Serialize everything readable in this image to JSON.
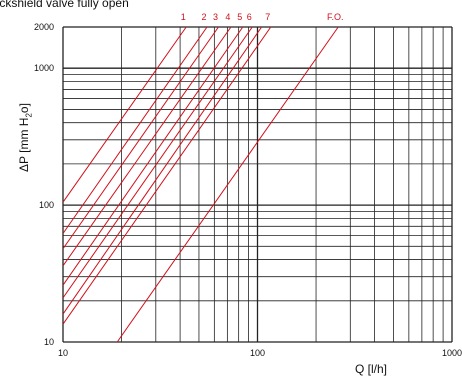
{
  "chart_data": {
    "type": "line",
    "title": "Lockshield valve fully open",
    "xlabel": "Q [l/h]",
    "ylabel_main": "ΔP [mm H",
    "ylabel_sub": "2",
    "ylabel_end": "o]",
    "x_scale": "log",
    "y_scale": "log",
    "xlim": [
      10,
      1000
    ],
    "ylim": [
      10,
      2000
    ],
    "x_ticks": [
      {
        "value": 10,
        "label": "10"
      },
      {
        "value": 100,
        "label": "100"
      },
      {
        "value": 1000,
        "label": "1000"
      }
    ],
    "y_ticks": [
      {
        "value": 10,
        "label": "10"
      },
      {
        "value": 100,
        "label": "100"
      },
      {
        "value": 1000,
        "label": "1000"
      },
      {
        "value": 2000,
        "label": "2000"
      }
    ],
    "grid": true,
    "line_color": "#d0101a",
    "series": [
      {
        "name": "1",
        "points": [
          [
            10,
            105
          ],
          [
            43,
            2000
          ]
        ]
      },
      {
        "name": "2",
        "points": [
          [
            10,
            62
          ],
          [
            55,
            2000
          ]
        ]
      },
      {
        "name": "3",
        "points": [
          [
            10,
            48
          ],
          [
            63,
            2000
          ]
        ]
      },
      {
        "name": "4",
        "points": [
          [
            10,
            36
          ],
          [
            73,
            2000
          ]
        ]
      },
      {
        "name": "5",
        "points": [
          [
            10,
            26
          ],
          [
            84,
            2000
          ]
        ]
      },
      {
        "name": "6",
        "points": [
          [
            10,
            21
          ],
          [
            94,
            2000
          ]
        ]
      },
      {
        "name": "",
        "points": [
          [
            10,
            16
          ],
          [
            105,
            2000
          ]
        ]
      },
      {
        "name": "7",
        "points": [
          [
            10,
            13.5
          ],
          [
            117,
            2000
          ]
        ]
      },
      {
        "name": "F.O.",
        "points": [
          [
            19,
            10
          ],
          [
            260,
            2000
          ]
        ]
      }
    ]
  }
}
